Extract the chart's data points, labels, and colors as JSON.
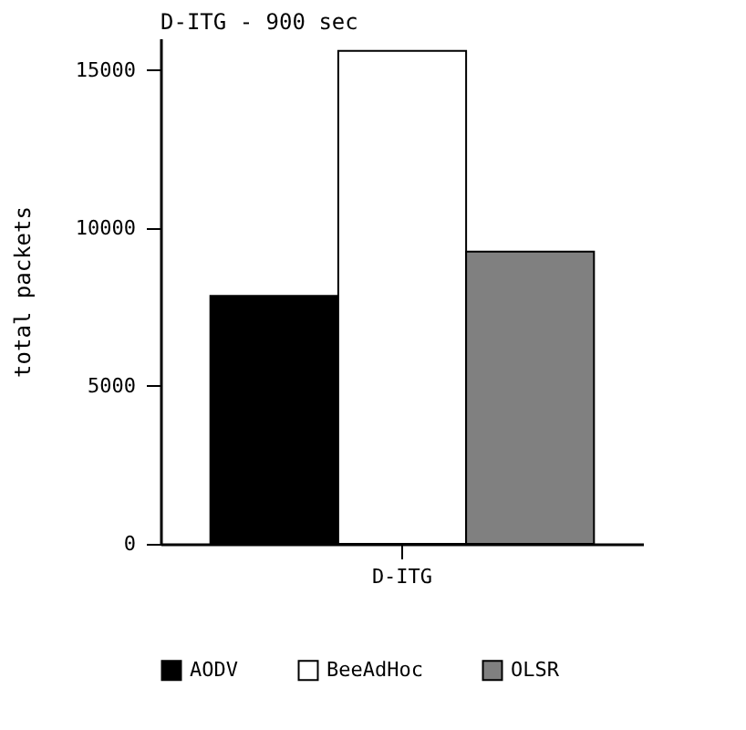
{
  "chart_data": {
    "type": "bar",
    "title": "D-ITG - 900 sec",
    "ylabel": "total packets",
    "categories": [
      "D-ITG"
    ],
    "series": [
      {
        "name": "AODV",
        "color": "#000000",
        "values": [
          7850
        ]
      },
      {
        "name": "BeeAdHoc",
        "color": "#ffffff",
        "values": [
          15600
        ]
      },
      {
        "name": "OLSR",
        "color": "#808080",
        "values": [
          9250
        ]
      }
    ],
    "ylim": [
      0,
      16000
    ],
    "yticks": [
      0,
      5000,
      10000,
      15000
    ],
    "legend": "bottom",
    "grid": false
  }
}
